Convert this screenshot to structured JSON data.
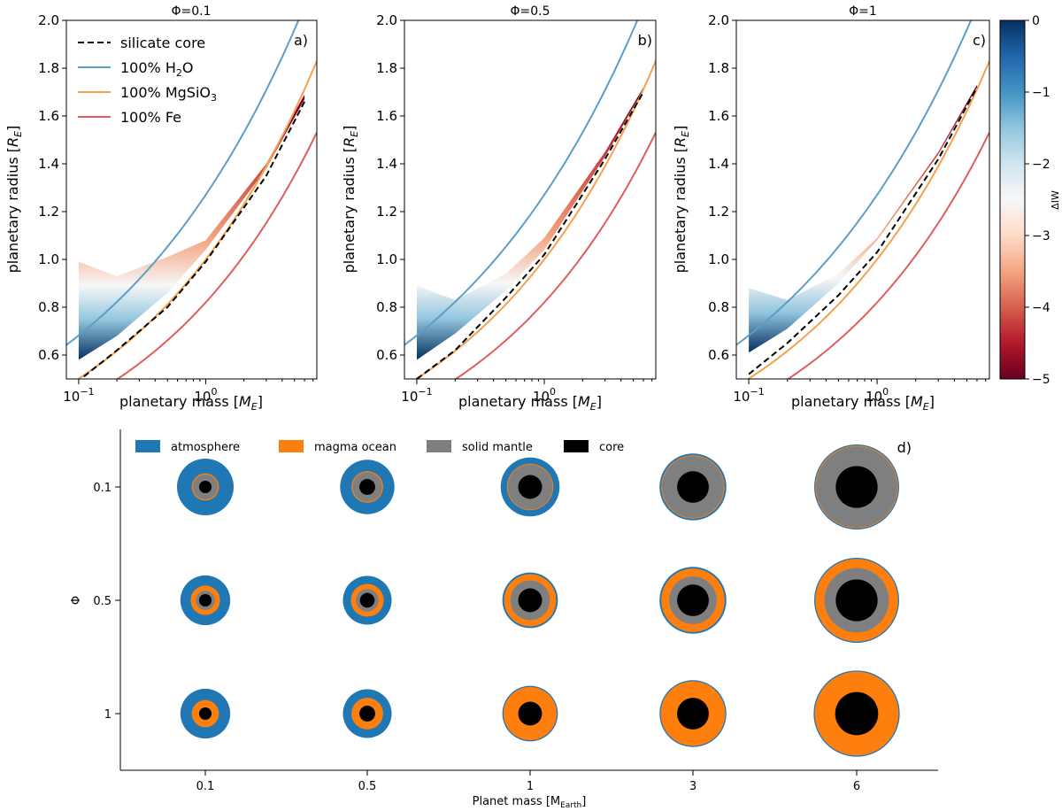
{
  "colors": {
    "h2o": "#5b9ec9",
    "mgsio3": "#f6a04d",
    "fe": "#de5d5d",
    "silicate_core": "#000000",
    "atmosphere": "#1f77b4",
    "magma_ocean": "#ff7f0e",
    "solid_mantle": "#7f7f7f",
    "core": "#000000"
  },
  "chart_data": [
    {
      "type": "line",
      "panel_label": "a)",
      "title": "Φ=0.1",
      "xlabel": "planetary mass [M_E]",
      "ylabel": "planetary radius [R_E]",
      "xscale": "log",
      "xlim": [
        0.08,
        7.5
      ],
      "ylim": [
        0.5,
        2.0
      ],
      "yticks": [
        "0.6",
        "0.8",
        "1.0",
        "1.2",
        "1.4",
        "1.6",
        "1.8",
        "2.0"
      ],
      "xticks": [
        {
          "value": 0.1,
          "base": "10",
          "exp": "−1"
        },
        {
          "value": 1,
          "base": "10",
          "exp": "0"
        }
      ],
      "legend": {
        "location": "top-left",
        "entries": [
          {
            "key": "silicate_core",
            "label": "silicate core",
            "style": "dashed"
          },
          {
            "key": "h2o",
            "label": "100% H",
            "sub": "2",
            "after": "O"
          },
          {
            "key": "mgsio3",
            "label": "100% MgSiO",
            "sub": "3",
            "after": ""
          },
          {
            "key": "fe",
            "label": "100% Fe",
            "sub": "",
            "after": ""
          }
        ]
      },
      "band": {
        "mass": [
          0.1,
          0.2,
          0.5,
          1.0,
          3.0,
          6.0
        ],
        "upper": [
          0.99,
          0.93,
          1.01,
          1.08,
          1.4,
          1.69
        ],
        "lower": [
          0.58,
          0.68,
          0.86,
          1.04,
          1.38,
          1.67
        ]
      },
      "silicate_core": {
        "mass": [
          0.11,
          0.2,
          0.5,
          1.0,
          3.0,
          6.0
        ],
        "radius": [
          0.51,
          0.62,
          0.8,
          0.99,
          1.35,
          1.66
        ]
      }
    },
    {
      "type": "line",
      "panel_label": "b)",
      "title": "Φ=0.5",
      "xlabel": "planetary mass [M_E]",
      "ylabel": "planetary radius [R_E]",
      "xscale": "log",
      "xlim": [
        0.08,
        7.5
      ],
      "ylim": [
        0.5,
        2.0
      ],
      "yticks": [
        "0.6",
        "0.8",
        "1.0",
        "1.2",
        "1.4",
        "1.6",
        "1.8",
        "2.0"
      ],
      "xticks": [
        {
          "value": 0.1,
          "base": "10",
          "exp": "−1"
        },
        {
          "value": 1,
          "base": "10",
          "exp": "0"
        }
      ],
      "band": {
        "mass": [
          0.1,
          0.2,
          0.5,
          1.0,
          3.0,
          6.0
        ],
        "upper": [
          0.89,
          0.83,
          0.94,
          1.09,
          1.45,
          1.72
        ],
        "lower": [
          0.58,
          0.69,
          0.87,
          1.04,
          1.43,
          1.71
        ]
      },
      "silicate_core": {
        "mass": [
          0.1,
          0.2,
          0.5,
          1.0,
          3.0,
          6.0
        ],
        "radius": [
          0.5,
          0.62,
          0.84,
          1.02,
          1.42,
          1.7
        ]
      }
    },
    {
      "type": "line",
      "panel_label": "c)",
      "title": "Φ=1",
      "xlabel": "planetary mass [M_E]",
      "ylabel": "planetary radius [R_E]",
      "xscale": "log",
      "xlim": [
        0.08,
        7.5
      ],
      "ylim": [
        0.5,
        2.0
      ],
      "yticks": [
        "0.6",
        "0.8",
        "1.0",
        "1.2",
        "1.4",
        "1.6",
        "1.8",
        "2.0"
      ],
      "xticks": [
        {
          "value": 0.1,
          "base": "10",
          "exp": "−1"
        },
        {
          "value": 1,
          "base": "10",
          "exp": "0"
        }
      ],
      "band": {
        "mass": [
          0.1,
          0.2,
          0.5,
          1.0,
          3.0,
          6.0
        ],
        "upper": [
          0.88,
          0.83,
          0.94,
          1.09,
          1.45,
          1.73
        ],
        "lower": [
          0.61,
          0.71,
          0.9,
          1.08,
          1.44,
          1.72
        ]
      },
      "silicate_core": {
        "mass": [
          0.1,
          0.2,
          0.5,
          1.0,
          3.0,
          6.0
        ],
        "radius": [
          0.52,
          0.65,
          0.85,
          1.03,
          1.42,
          1.72
        ]
      }
    },
    {
      "type": "heatmap",
      "role": "colorbar",
      "label": "ΔIW",
      "range": [
        -5,
        0
      ],
      "ticks": [
        "0",
        "−1",
        "−2",
        "−3",
        "−4",
        "−5"
      ],
      "colormap": "RdBu"
    },
    {
      "type": "scatter",
      "panel_label": "d)",
      "title": "",
      "xlabel": "Planet mass [M",
      "xlabel_sub": "Earth",
      "xlabel_after": "]",
      "ylabel": "Φ",
      "categories": [
        "0.1",
        "0.5",
        "1",
        "3",
        "6"
      ],
      "rows": [
        "0.1",
        "0.5",
        "1"
      ],
      "legend": {
        "location": "top",
        "entries": [
          {
            "key": "atmosphere",
            "label": "atmosphere"
          },
          {
            "key": "magma_ocean",
            "label": "magma ocean"
          },
          {
            "key": "solid_mantle",
            "label": "solid mantle"
          },
          {
            "key": "core",
            "label": "core"
          }
        ]
      },
      "planets": [
        {
          "mass": "0.1",
          "phi": "0.1",
          "atmosphere": 1.0,
          "magma_ocean": 0.48,
          "solid_mantle": 0.44,
          "core": 0.22
        },
        {
          "mass": "0.5",
          "phi": "0.1",
          "atmosphere": 0.96,
          "magma_ocean": 0.56,
          "solid_mantle": 0.52,
          "core": 0.28
        },
        {
          "mass": "1",
          "phi": "0.1",
          "atmosphere": 1.04,
          "magma_ocean": 0.82,
          "solid_mantle": 0.79,
          "core": 0.42
        },
        {
          "mass": "3",
          "phi": "0.1",
          "atmosphere": 1.18,
          "magma_ocean": 1.12,
          "solid_mantle": 1.09,
          "core": 0.56
        },
        {
          "mass": "6",
          "phi": "0.1",
          "atmosphere": 1.5,
          "magma_ocean": 1.46,
          "solid_mantle": 1.43,
          "core": 0.74
        },
        {
          "mass": "0.1",
          "phi": "0.5",
          "atmosphere": 0.88,
          "magma_ocean": 0.52,
          "solid_mantle": 0.34,
          "core": 0.22
        },
        {
          "mass": "0.5",
          "phi": "0.5",
          "atmosphere": 0.86,
          "magma_ocean": 0.58,
          "solid_mantle": 0.4,
          "core": 0.26
        },
        {
          "mass": "1",
          "phi": "0.5",
          "atmosphere": 0.98,
          "magma_ocean": 0.92,
          "solid_mantle": 0.7,
          "core": 0.42
        },
        {
          "mass": "3",
          "phi": "0.5",
          "atmosphere": 1.18,
          "magma_ocean": 1.12,
          "solid_mantle": 0.84,
          "core": 0.56
        },
        {
          "mass": "6",
          "phi": "0.5",
          "atmosphere": 1.5,
          "magma_ocean": 1.46,
          "solid_mantle": 1.14,
          "core": 0.74
        },
        {
          "mass": "0.1",
          "phi": "1",
          "atmosphere": 0.88,
          "magma_ocean": 0.48,
          "solid_mantle": 0,
          "core": 0.22
        },
        {
          "mass": "0.5",
          "phi": "1",
          "atmosphere": 0.86,
          "magma_ocean": 0.56,
          "solid_mantle": 0,
          "core": 0.28
        },
        {
          "mass": "1",
          "phi": "1",
          "atmosphere": 0.98,
          "magma_ocean": 0.94,
          "solid_mantle": 0,
          "core": 0.42
        },
        {
          "mass": "3",
          "phi": "1",
          "atmosphere": 1.18,
          "magma_ocean": 1.14,
          "solid_mantle": 0,
          "core": 0.56
        },
        {
          "mass": "6",
          "phi": "1",
          "atmosphere": 1.52,
          "magma_ocean": 1.48,
          "solid_mantle": 0,
          "core": 0.76
        }
      ]
    }
  ]
}
